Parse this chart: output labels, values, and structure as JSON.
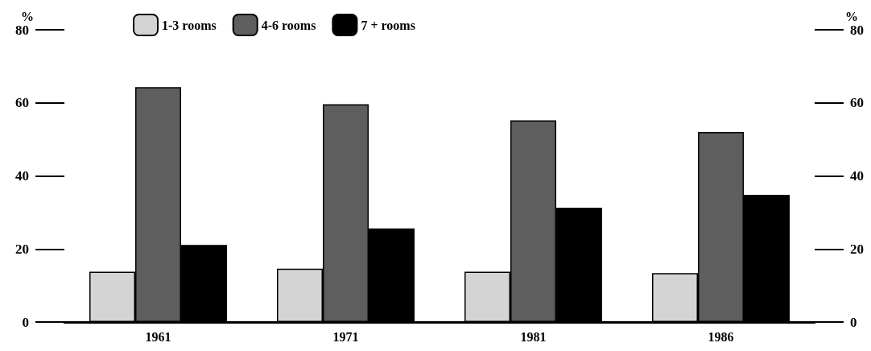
{
  "chart_data": {
    "type": "bar",
    "ylabel": "%",
    "y2label": "%",
    "categories": [
      "1961",
      "1971",
      "1981",
      "1986"
    ],
    "series": [
      {
        "name": "1-3 rooms",
        "color": "#d4d4d4",
        "values": [
          13.8,
          14.6,
          13.8,
          13.4
        ]
      },
      {
        "name": "4-6 rooms",
        "color": "#5e5e5e",
        "values": [
          64.3,
          59.6,
          55.2,
          52.0
        ]
      },
      {
        "name": "7 + rooms",
        "color": "#000000",
        "values": [
          21.1,
          25.6,
          31.3,
          34.8
        ]
      }
    ],
    "ylim": [
      0,
      80
    ],
    "yticks": [
      0,
      20,
      40,
      60,
      80
    ],
    "y2lim": [
      0,
      80
    ],
    "y2ticks": [
      0,
      20,
      40,
      60,
      80
    ],
    "grid": false,
    "legend": "top left"
  }
}
